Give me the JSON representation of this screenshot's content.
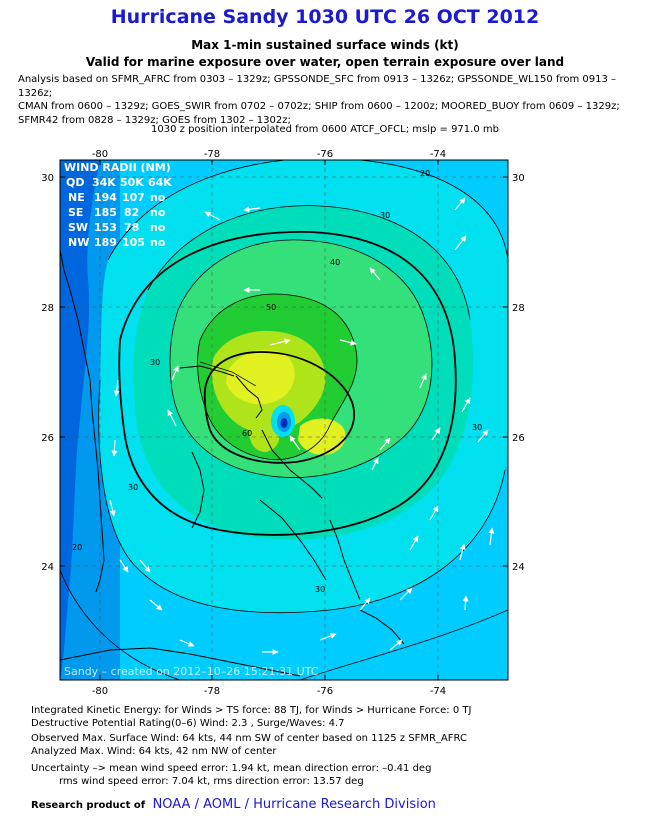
{
  "header": {
    "title": "Hurricane Sandy 1030 UTC 26 OCT 2012",
    "subtitle1": "Max 1-min sustained surface winds (kt)",
    "subtitle2": "Valid for marine exposure over water, open terrain exposure over land",
    "analysis_lines": [
      "Analysis based on SFMR_AFRC from 0303 – 1329z; GPSSONDE_SFC from 0913 – 1326z; GPSSONDE_WL150 from 0913 – 1326z;",
      "CMAN from 0600 – 1329z; GOES_SWIR from 0702 – 0702z; SHIP from 0600 – 1200z; MOORED_BUOY from 0609 – 1329z;",
      "SFMR42 from 0828 – 1329z; GOES from 1302 – 1302z;"
    ],
    "interpolation": "1030 z position interpolated from 0600 ATCF_OFCL; mslp = 971.0 mb"
  },
  "map": {
    "lon_ticks": [
      "-80",
      "-78",
      "-76",
      "-74"
    ],
    "lat_ticks": [
      "30",
      "28",
      "26",
      "24"
    ],
    "contour_labels": [
      "20",
      "30",
      "40",
      "50",
      "60",
      "30",
      "30",
      "20",
      "30",
      "30"
    ],
    "wind_radii": {
      "title": "WIND RADII (NM)",
      "header": [
        "QD",
        "34K",
        "50K",
        "64K"
      ],
      "rows": [
        [
          "NE",
          "194",
          "107",
          "no"
        ],
        [
          "SE",
          "185",
          "82",
          "no"
        ],
        [
          "SW",
          "153",
          "78",
          "no"
        ],
        [
          "NW",
          "189",
          "105",
          "no"
        ]
      ]
    },
    "watermark": "Sandy – created on 2012–10–26 15:21:31 UTC",
    "colors": {
      "lt_blue": "#00ccff",
      "cyan": "#00e0ee",
      "teal": "#00ddbb",
      "green_lt": "#33e07a",
      "green": "#22cc33",
      "yellow_green": "#b0e41a",
      "yellow": "#e0f020",
      "blue": "#0099ee",
      "deep_blue": "#0033bb"
    }
  },
  "footer": {
    "ike": "Integrated Kinetic Energy: for Winds > TS force: 88 TJ, for Winds > Hurricane Force: 0 TJ",
    "dpr": "Destructive Potential Rating(0–6)  Wind: 2.3 , Surge/Waves: 4.7",
    "obs_max": "Observed Max. Surface Wind: 64 kts, 44 nm SW of center based on 1125 z SFMR_AFRC",
    "analyzed_max": "Analyzed Max. Wind: 64 kts, 42 nm  NW of center",
    "uncertainty": "Uncertainty –> mean wind speed error: 1.94 kt, mean direction error:  –0.41 deg",
    "rms": "rms wind speed error: 7.04 kt, rms direction error: 13.57 deg",
    "credit_label": "Research product of",
    "credit_org": "NOAA  /  AOML  /  Hurricane Research Division"
  }
}
